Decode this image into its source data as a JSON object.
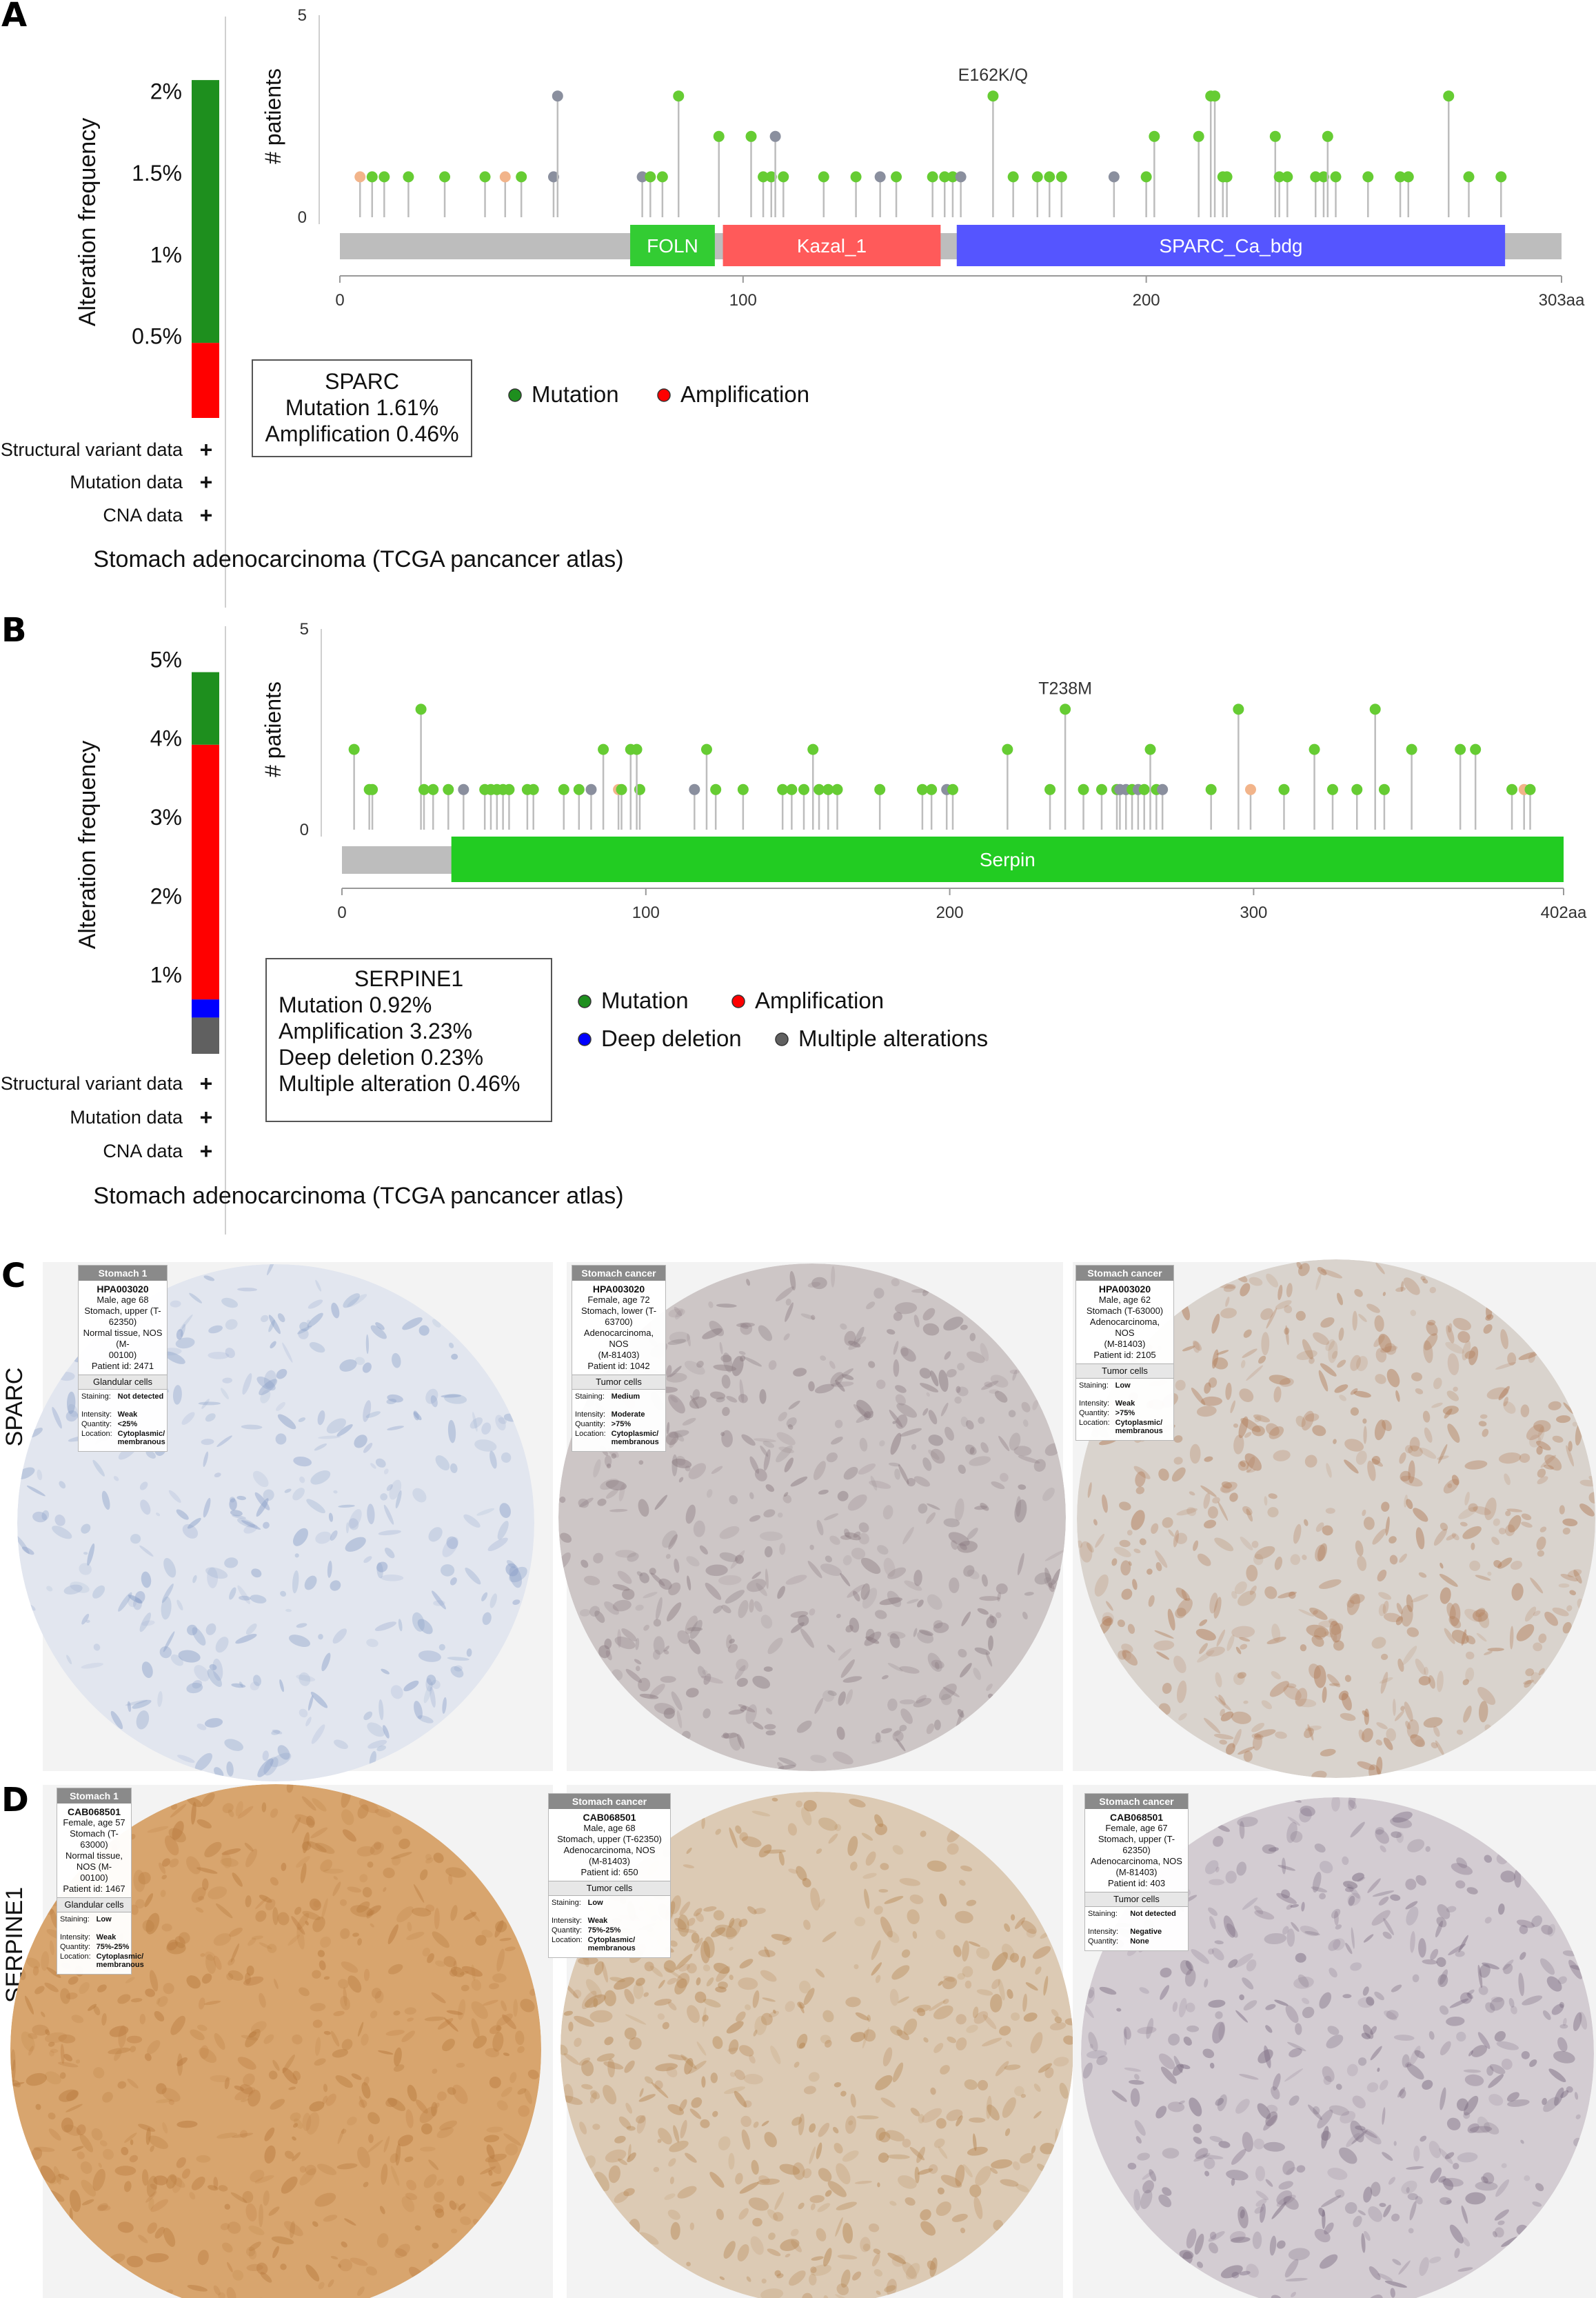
{
  "panel_letters": [
    "A",
    "B",
    "C",
    "D"
  ],
  "colors": {
    "mutation": "#1e8f1e",
    "amplification": "#ff0000",
    "deep_deletion": "#0000ff",
    "multiple": "#606060",
    "lollipop_green": "#66cc33",
    "lollipop_orange": "#f2b48a",
    "lollipop_grey": "#8a8f9e",
    "protein_bar": "#bdbdbd"
  },
  "chart_data": [
    {
      "panel": "A",
      "type": "bar",
      "ylabel": "Alteration frequency",
      "yticks": [
        "0.5%",
        "1%",
        "1.5%",
        "2%"
      ],
      "ytick_values": [
        0.5,
        1,
        1.5,
        2
      ],
      "ylim": [
        0,
        2.4
      ],
      "stack": [
        {
          "name": "Amplification",
          "value": 0.46,
          "color": "#ff0000"
        },
        {
          "name": "Mutation",
          "value": 1.61,
          "color": "#1e8f1e"
        }
      ],
      "track_labels": [
        "Structural variant data",
        "Mutation data",
        "CNA data"
      ],
      "track_marks": [
        "+",
        "+",
        "+"
      ],
      "study_label": "Stomach adenocarcinoma (TCGA pancancer atlas)",
      "summary_lines": [
        "SPARC",
        "Mutation 1.61%",
        "Amplification 0.46%"
      ],
      "legend": [
        {
          "label": "Mutation",
          "color": "#1e8f1e"
        },
        {
          "label": "Amplification",
          "color": "#ff0000"
        }
      ]
    },
    {
      "panel": "A",
      "type": "scatter",
      "ylabel": "# patients",
      "yticks": [
        "0",
        "5"
      ],
      "ylim": [
        0,
        5
      ],
      "xlim": [
        0,
        303
      ],
      "xticks": [
        "0",
        "100",
        "200",
        "303aa"
      ],
      "xtick_values": [
        0,
        100,
        200,
        303
      ],
      "hotspot_label": "E162K/Q",
      "hotspot_pos": 162,
      "domains": [
        {
          "name": "FOLN",
          "start": 72,
          "end": 93,
          "color": "#33cc33"
        },
        {
          "name": "Kazal_1",
          "start": 95,
          "end": 149,
          "color": "#ff5a5a"
        },
        {
          "name": "SPARC_Ca_bdg",
          "start": 153,
          "end": 289,
          "color": "#5555ff"
        }
      ],
      "points": [
        [
          5,
          1,
          "o"
        ],
        [
          8,
          1,
          "g"
        ],
        [
          11,
          1,
          "g"
        ],
        [
          17,
          1,
          "g"
        ],
        [
          26,
          1,
          "g"
        ],
        [
          36,
          1,
          "g"
        ],
        [
          41,
          1,
          "o"
        ],
        [
          45,
          1,
          "g"
        ],
        [
          53,
          1,
          "x"
        ],
        [
          54,
          3,
          "x"
        ],
        [
          75,
          1,
          "x"
        ],
        [
          77,
          1,
          "g"
        ],
        [
          80,
          1,
          "g"
        ],
        [
          84,
          3,
          "g"
        ],
        [
          94,
          2,
          "g"
        ],
        [
          102,
          2,
          "g"
        ],
        [
          105,
          1,
          "g"
        ],
        [
          107,
          1,
          "g"
        ],
        [
          108,
          2,
          "x"
        ],
        [
          110,
          1,
          "g"
        ],
        [
          120,
          1,
          "g"
        ],
        [
          128,
          1,
          "g"
        ],
        [
          134,
          1,
          "x"
        ],
        [
          138,
          1,
          "g"
        ],
        [
          147,
          1,
          "g"
        ],
        [
          150,
          1,
          "g"
        ],
        [
          152,
          1,
          "g"
        ],
        [
          154,
          1,
          "x"
        ],
        [
          162,
          3,
          "g"
        ],
        [
          167,
          1,
          "g"
        ],
        [
          173,
          1,
          "g"
        ],
        [
          176,
          1,
          "g"
        ],
        [
          179,
          1,
          "g"
        ],
        [
          192,
          1,
          "x"
        ],
        [
          200,
          1,
          "g"
        ],
        [
          202,
          2,
          "g"
        ],
        [
          213,
          2,
          "g"
        ],
        [
          216,
          3,
          "g"
        ],
        [
          217,
          3,
          "g"
        ],
        [
          219,
          1,
          "g"
        ],
        [
          220,
          1,
          "g"
        ],
        [
          232,
          2,
          "g"
        ],
        [
          233,
          1,
          "g"
        ],
        [
          235,
          1,
          "g"
        ],
        [
          242,
          1,
          "g"
        ],
        [
          244,
          1,
          "g"
        ],
        [
          245,
          2,
          "g"
        ],
        [
          247,
          1,
          "g"
        ],
        [
          255,
          1,
          "g"
        ],
        [
          263,
          1,
          "g"
        ],
        [
          265,
          1,
          "g"
        ],
        [
          275,
          3,
          "g"
        ],
        [
          280,
          1,
          "g"
        ],
        [
          288,
          1,
          "g"
        ]
      ]
    },
    {
      "panel": "B",
      "type": "bar",
      "ylabel": "Alteration frequency",
      "yticks": [
        "1%",
        "2%",
        "3%",
        "4%",
        "5%"
      ],
      "ytick_values": [
        1,
        2,
        3,
        4,
        5
      ],
      "ylim": [
        0,
        5.3
      ],
      "stack": [
        {
          "name": "Multiple alteration",
          "value": 0.46,
          "color": "#606060"
        },
        {
          "name": "Deep deletion",
          "value": 0.23,
          "color": "#0000ff"
        },
        {
          "name": "Amplification",
          "value": 3.23,
          "color": "#ff0000"
        },
        {
          "name": "Mutation",
          "value": 0.92,
          "color": "#1e8f1e"
        }
      ],
      "track_labels": [
        "Structural variant data",
        "Mutation data",
        "CNA data"
      ],
      "track_marks": [
        "+",
        "+",
        "+"
      ],
      "study_label": "Stomach adenocarcinoma (TCGA pancancer atlas)",
      "summary_lines": [
        "SERPINE1",
        "Mutation 0.92%",
        "Amplification 3.23%",
        "Deep deletion 0.23%",
        "Multiple alteration 0.46%"
      ],
      "legend": [
        {
          "label": "Mutation",
          "color": "#1e8f1e"
        },
        {
          "label": "Amplification",
          "color": "#ff0000"
        },
        {
          "label": "Deep deletion",
          "color": "#0000ff"
        },
        {
          "label": "Multiple alterations",
          "color": "#606060"
        }
      ]
    },
    {
      "panel": "B",
      "type": "scatter",
      "ylabel": "# patients",
      "yticks": [
        "0",
        "5"
      ],
      "ylim": [
        0,
        5
      ],
      "xlim": [
        0,
        402
      ],
      "xticks": [
        "0",
        "100",
        "200",
        "300",
        "402aa"
      ],
      "xtick_values": [
        0,
        100,
        200,
        300,
        402
      ],
      "hotspot_label": "T238M",
      "hotspot_pos": 238,
      "domains": [
        {
          "name": "Serpin",
          "start": 36,
          "end": 402,
          "color": "#22cc22"
        }
      ],
      "points": [
        [
          4,
          2,
          "g"
        ],
        [
          9,
          1,
          "g"
        ],
        [
          10,
          1,
          "g"
        ],
        [
          26,
          3,
          "g"
        ],
        [
          27,
          1,
          "g"
        ],
        [
          30,
          1,
          "g"
        ],
        [
          35,
          1,
          "g"
        ],
        [
          40,
          1,
          "x"
        ],
        [
          47,
          1,
          "g"
        ],
        [
          49,
          1,
          "g"
        ],
        [
          51,
          1,
          "g"
        ],
        [
          53,
          1,
          "g"
        ],
        [
          55,
          1,
          "g"
        ],
        [
          61,
          1,
          "g"
        ],
        [
          63,
          1,
          "g"
        ],
        [
          73,
          1,
          "g"
        ],
        [
          78,
          1,
          "g"
        ],
        [
          82,
          1,
          "x"
        ],
        [
          86,
          2,
          "g"
        ],
        [
          91,
          1,
          "o"
        ],
        [
          92,
          1,
          "g"
        ],
        [
          95,
          2,
          "g"
        ],
        [
          98,
          1,
          "g"
        ],
        [
          97,
          2,
          "g"
        ],
        [
          116,
          1,
          "x"
        ],
        [
          120,
          2,
          "g"
        ],
        [
          123,
          1,
          "g"
        ],
        [
          132,
          1,
          "g"
        ],
        [
          145,
          1,
          "g"
        ],
        [
          148,
          1,
          "g"
        ],
        [
          152,
          1,
          "g"
        ],
        [
          155,
          2,
          "g"
        ],
        [
          157,
          1,
          "g"
        ],
        [
          160,
          1,
          "g"
        ],
        [
          163,
          1,
          "g"
        ],
        [
          177,
          1,
          "g"
        ],
        [
          191,
          1,
          "g"
        ],
        [
          194,
          1,
          "g"
        ],
        [
          199,
          1,
          "x"
        ],
        [
          201,
          1,
          "g"
        ],
        [
          219,
          2,
          "g"
        ],
        [
          233,
          1,
          "g"
        ],
        [
          238,
          3,
          "g"
        ],
        [
          244,
          1,
          "g"
        ],
        [
          250,
          1,
          "g"
        ],
        [
          255,
          1,
          "g"
        ],
        [
          256,
          1,
          "x"
        ],
        [
          258,
          1,
          "x"
        ],
        [
          260,
          1,
          "g"
        ],
        [
          262,
          1,
          "x"
        ],
        [
          264,
          1,
          "g"
        ],
        [
          266,
          2,
          "g"
        ],
        [
          268,
          1,
          "g"
        ],
        [
          270,
          1,
          "x"
        ],
        [
          286,
          1,
          "g"
        ],
        [
          295,
          3,
          "g"
        ],
        [
          299,
          1,
          "o"
        ],
        [
          310,
          1,
          "g"
        ],
        [
          320,
          2,
          "g"
        ],
        [
          326,
          1,
          "g"
        ],
        [
          334,
          1,
          "g"
        ],
        [
          340,
          3,
          "g"
        ],
        [
          343,
          1,
          "g"
        ],
        [
          352,
          2,
          "g"
        ],
        [
          368,
          2,
          "g"
        ],
        [
          373,
          2,
          "g"
        ],
        [
          385,
          1,
          "g"
        ],
        [
          389,
          1,
          "o"
        ],
        [
          391,
          1,
          "g"
        ]
      ]
    }
  ],
  "ihc": {
    "row_labels": {
      "C": "SPARC",
      "D": "SERPINE1"
    },
    "cards": [
      {
        "id": "c1",
        "header": "Stomach 1",
        "antibody": "HPA003020",
        "lines": [
          "Male, age 68",
          "Stomach, upper (T-62350)",
          "Normal tissue, NOS (M-",
          "00100)",
          "Patient id: 2471"
        ],
        "section": "Glandular cells",
        "fields": [
          [
            "Staining:",
            "Not detected"
          ],
          [
            "",
            ""
          ],
          [
            "Intensity:",
            "Weak"
          ],
          [
            "Quantity:",
            "<25%"
          ],
          [
            "Location:",
            "Cytoplasmic/ membranous"
          ]
        ]
      },
      {
        "id": "c2",
        "header": "Stomach cancer",
        "antibody": "HPA003020",
        "lines": [
          "Female, age 72",
          "Stomach, lower (T-63700)",
          "Adenocarcinoma, NOS",
          "(M-81403)",
          "Patient id: 1042"
        ],
        "section": "Tumor cells",
        "fields": [
          [
            "Staining:",
            "Medium"
          ],
          [
            "",
            ""
          ],
          [
            "Intensity:",
            "Moderate"
          ],
          [
            "Quantity:",
            ">75%"
          ],
          [
            "Location:",
            "Cytoplasmic/ membranous"
          ]
        ]
      },
      {
        "id": "c3",
        "header": "Stomach cancer",
        "antibody": "HPA003020",
        "lines": [
          "Male, age 62",
          "Stomach (T-63000)",
          "Adenocarcinoma, NOS",
          "(M-81403)",
          "Patient id: 2105"
        ],
        "section": "Tumor cells",
        "fields": [
          [
            "Staining:",
            "Low"
          ],
          [
            "",
            ""
          ],
          [
            "Intensity:",
            "Weak"
          ],
          [
            "Quantity:",
            ">75%"
          ],
          [
            "Location:",
            "Cytoplasmic/ membranous"
          ]
        ]
      },
      {
        "id": "d1",
        "header": "Stomach 1",
        "antibody": "CAB068501",
        "lines": [
          "Female, age 57",
          "Stomach (T-63000)",
          "Normal tissue, NOS (M-",
          "00100)",
          "Patient id: 1467"
        ],
        "section": "Glandular cells",
        "fields": [
          [
            "Staining:",
            "Low"
          ],
          [
            "",
            ""
          ],
          [
            "Intensity:",
            "Weak"
          ],
          [
            "Quantity:",
            "75%-25%"
          ],
          [
            "Location:",
            "Cytoplasmic/ membranous"
          ]
        ]
      },
      {
        "id": "d2",
        "header": "Stomach cancer",
        "antibody": "CAB068501",
        "lines": [
          "Male, age 68",
          "Stomach, upper (T-62350)",
          "Adenocarcinoma, NOS",
          "(M-81403)",
          "Patient id: 650"
        ],
        "section": "Tumor cells",
        "fields": [
          [
            "Staining:",
            "Low"
          ],
          [
            "",
            ""
          ],
          [
            "Intensity:",
            "Weak"
          ],
          [
            "Quantity:",
            "75%-25%"
          ],
          [
            "Location:",
            "Cytoplasmic/ membranous"
          ]
        ]
      },
      {
        "id": "d3",
        "header": "Stomach cancer",
        "antibody": "CAB068501",
        "lines": [
          "Female, age 67",
          "Stomach, upper (T-62350)",
          "Adenocarcinoma, NOS",
          "(M-81403)",
          "Patient id: 403"
        ],
        "section": "Tumor cells",
        "fields": [
          [
            "Staining:",
            "Not detected"
          ],
          [
            "",
            ""
          ],
          [
            "Intensity:",
            "Negative"
          ],
          [
            "Quantity:",
            "None"
          ]
        ]
      }
    ],
    "cores": [
      {
        "id": "c1",
        "tone": "#8aa0c8",
        "bg": "#e2e6ef",
        "density": 0.15
      },
      {
        "id": "c2",
        "tone": "#8a7a80",
        "bg": "#cdc6c6",
        "density": 0.45
      },
      {
        "id": "c3",
        "tone": "#b07a55",
        "bg": "#d9d3cd",
        "density": 0.55
      },
      {
        "id": "d1",
        "tone": "#b87a3e",
        "bg": "#d8a56e",
        "density": 0.6
      },
      {
        "id": "d2",
        "tone": "#b4834f",
        "bg": "#dccab4",
        "density": 0.5
      },
      {
        "id": "d3",
        "tone": "#7a6a80",
        "bg": "#d3ccd2",
        "density": 0.4
      }
    ]
  }
}
